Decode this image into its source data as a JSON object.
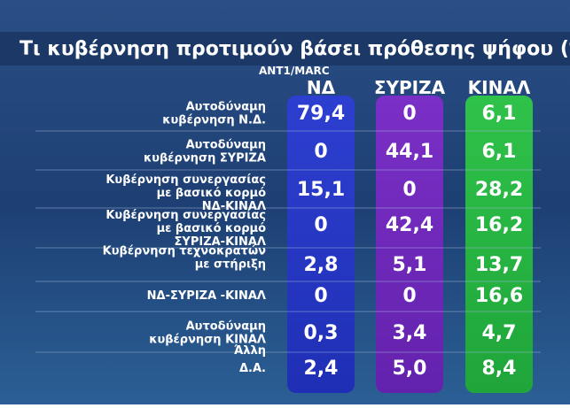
{
  "header": {
    "title": "Τι κυβέρνηση προτιμούν βάσει πρόθεσης ψήφου (%)",
    "source": "ANT1/MARC"
  },
  "table": {
    "columns": [
      "ΝΔ",
      "ΣΥΡΙΖΑ",
      "ΚΙΝΑΛ"
    ],
    "rows": [
      {
        "label": [
          "Αυτοδύναμη",
          "κυβέρνηση Ν.Δ."
        ],
        "cells": [
          "79,4",
          "0",
          "6,1"
        ]
      },
      {
        "label": [
          "Αυτοδύναμη",
          "κυβέρνηση ΣΥΡΙΖΑ"
        ],
        "cells": [
          "0",
          "44,1",
          "6,1"
        ]
      },
      {
        "label": [
          "Κυβέρνηση συνεργασίας",
          "με βασικό κορμό",
          "ΝΔ-ΚΙΝΑΛ"
        ],
        "cells": [
          "15,1",
          "0",
          "28,2"
        ]
      },
      {
        "label": [
          "Κυβέρνηση συνεργασίας",
          "με βασικό κορμό",
          "ΣΥΡΙΖΑ-ΚΙΝΑΛ"
        ],
        "cells": [
          "0",
          "42,4",
          "16,2"
        ]
      },
      {
        "label": [
          "Κυβέρνηση τεχνοκρατών",
          "με στήριξη"
        ],
        "cells": [
          "2,8",
          "5,1",
          "13,7"
        ]
      },
      {
        "label": [
          "ΝΔ-ΣΥΡΙΖΑ -ΚΙΝΑΛ"
        ],
        "cells": [
          "0",
          "0",
          "16,6"
        ]
      },
      {
        "label": [
          "Αυτοδύναμη",
          "κυβέρνηση ΚΙΝΑΛ"
        ],
        "cells": [
          "0,3",
          "3,4",
          "4,7"
        ]
      },
      {
        "label": [
          "Άλλη"
        ],
        "cells": []
      },
      {
        "label": [
          "Δ.Α."
        ],
        "cells": [
          "2,4",
          "5,0",
          "8,4"
        ]
      }
    ]
  }
}
